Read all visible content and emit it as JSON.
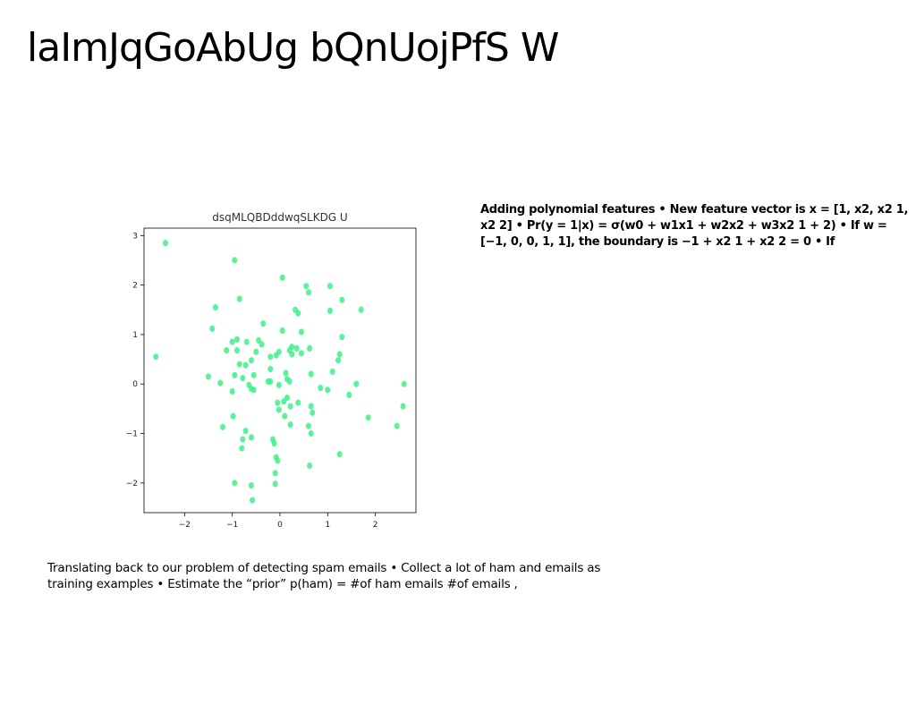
{
  "slide": {
    "title": "laImJqGoAbUg bQnUojPfS W"
  },
  "side_text": "Adding polynomial features • New feature vector is x = [1, x2, x2 1, x2 2] • Pr(y = 1|x) = σ(w0 + w1x1 + w2x2 + w3x2 1 + 2) • If w = [−1, 0, 0, 1, 1], the boundary is −1 + x2 1 + x2 2 = 0 • If",
  "bottom_text": "Translating back to our problem of detecting spam emails • Collect a lot of ham and emails as training examples • Estimate the “prior” p(ham) = #of ham emails #of emails ,",
  "colors": {
    "point": "#3ef08a",
    "axes": "#000000"
  },
  "chart_data": {
    "type": "scatter",
    "title": "dsqMLQBDddwqSLKDG U",
    "xlabel": "",
    "ylabel": "",
    "xlim": [
      -2.85,
      2.85
    ],
    "ylim": [
      -2.6,
      3.15
    ],
    "xticks": [
      -2,
      -1,
      0,
      1,
      2
    ],
    "yticks": [
      3,
      2,
      1,
      0,
      -1,
      -2
    ],
    "tick_labels_x": [
      "−2",
      "−1",
      "0",
      "1",
      "2"
    ],
    "tick_labels_y": [
      "3",
      "2",
      "1",
      "0",
      "−1",
      "−2"
    ],
    "grid": false,
    "points": [
      [
        -2.4,
        2.85
      ],
      [
        -0.95,
        2.5
      ],
      [
        0.05,
        2.15
      ],
      [
        0.55,
        1.98
      ],
      [
        1.05,
        1.98
      ],
      [
        0.6,
        1.85
      ],
      [
        -0.85,
        1.72
      ],
      [
        1.3,
        1.7
      ],
      [
        -1.35,
        1.55
      ],
      [
        0.32,
        1.5
      ],
      [
        0.38,
        1.43
      ],
      [
        1.7,
        1.5
      ],
      [
        1.05,
        1.48
      ],
      [
        -0.35,
        1.22
      ],
      [
        -1.42,
        1.12
      ],
      [
        0.05,
        1.08
      ],
      [
        0.45,
        1.05
      ],
      [
        1.3,
        0.95
      ],
      [
        -1.0,
        0.85
      ],
      [
        -0.9,
        0.9
      ],
      [
        -0.7,
        0.85
      ],
      [
        -0.45,
        0.88
      ],
      [
        -0.38,
        0.8
      ],
      [
        0.25,
        0.75
      ],
      [
        0.2,
        0.68
      ],
      [
        0.35,
        0.72
      ],
      [
        0.62,
        0.72
      ],
      [
        -1.12,
        0.68
      ],
      [
        -0.9,
        0.68
      ],
      [
        -0.5,
        0.65
      ],
      [
        -0.02,
        0.65
      ],
      [
        0.45,
        0.62
      ],
      [
        0.25,
        0.6
      ],
      [
        -0.08,
        0.58
      ],
      [
        1.25,
        0.6
      ],
      [
        -2.6,
        0.55
      ],
      [
        1.22,
        0.48
      ],
      [
        -0.2,
        0.55
      ],
      [
        -0.6,
        0.48
      ],
      [
        -0.85,
        0.4
      ],
      [
        -0.72,
        0.38
      ],
      [
        1.1,
        0.25
      ],
      [
        0.12,
        0.22
      ],
      [
        0.65,
        0.2
      ],
      [
        -0.2,
        0.3
      ],
      [
        -0.95,
        0.18
      ],
      [
        -0.55,
        0.18
      ],
      [
        -1.5,
        0.15
      ],
      [
        -0.78,
        0.12
      ],
      [
        -0.2,
        0.05
      ],
      [
        0.2,
        0.05
      ],
      [
        0.15,
        0.1
      ],
      [
        -0.25,
        0.05
      ],
      [
        -1.25,
        0.02
      ],
      [
        1.6,
        0.0
      ],
      [
        2.6,
        0.0
      ],
      [
        -0.65,
        -0.02
      ],
      [
        -0.02,
        -0.02
      ],
      [
        0.85,
        -0.08
      ],
      [
        -0.6,
        -0.1
      ],
      [
        -0.55,
        -0.12
      ],
      [
        1.0,
        -0.12
      ],
      [
        -1.0,
        -0.15
      ],
      [
        1.45,
        -0.22
      ],
      [
        0.15,
        -0.28
      ],
      [
        0.08,
        -0.35
      ],
      [
        -0.05,
        -0.38
      ],
      [
        0.38,
        -0.38
      ],
      [
        0.22,
        -0.45
      ],
      [
        0.65,
        -0.45
      ],
      [
        2.58,
        -0.45
      ],
      [
        -0.02,
        -0.52
      ],
      [
        0.68,
        -0.58
      ],
      [
        -0.98,
        -0.65
      ],
      [
        0.1,
        -0.65
      ],
      [
        1.85,
        -0.68
      ],
      [
        0.22,
        -0.82
      ],
      [
        0.6,
        -0.85
      ],
      [
        2.45,
        -0.85
      ],
      [
        -1.2,
        -0.87
      ],
      [
        -0.72,
        -0.95
      ],
      [
        0.65,
        -1.0
      ],
      [
        -0.6,
        -1.08
      ],
      [
        -0.78,
        -1.12
      ],
      [
        -0.15,
        -1.12
      ],
      [
        -0.12,
        -1.2
      ],
      [
        -0.8,
        -1.3
      ],
      [
        1.25,
        -1.42
      ],
      [
        -0.08,
        -1.48
      ],
      [
        -0.05,
        -1.55
      ],
      [
        0.62,
        -1.65
      ],
      [
        -0.1,
        -1.8
      ],
      [
        -0.95,
        -2.0
      ],
      [
        -0.1,
        -2.02
      ],
      [
        -0.6,
        -2.05
      ],
      [
        -0.58,
        -2.35
      ]
    ]
  }
}
